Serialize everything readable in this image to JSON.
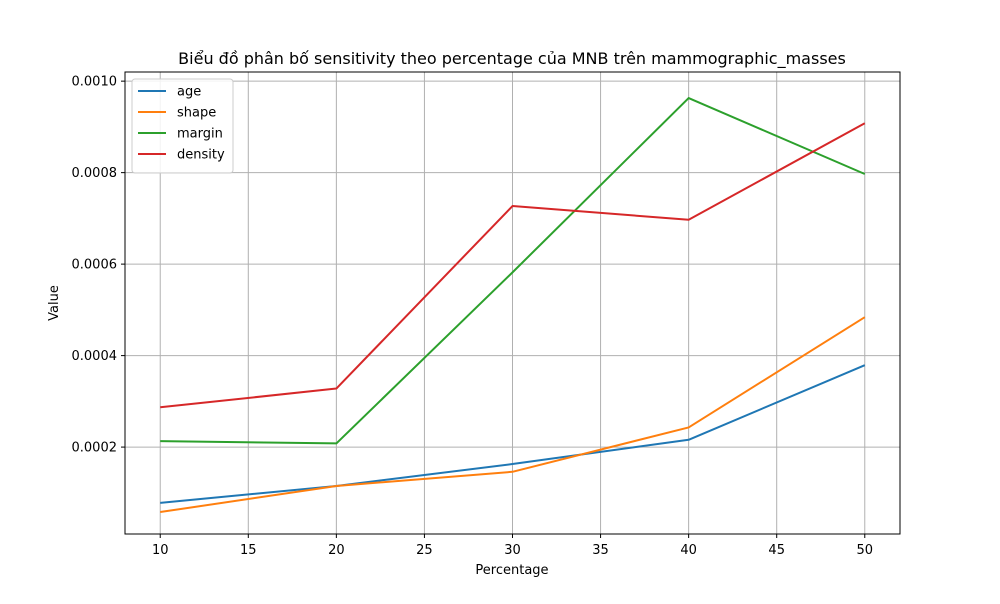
{
  "chart_data": {
    "type": "line",
    "title": "Biểu đồ phân bố sensitivity theo percentage của MNB trên mammographic_masses",
    "xlabel": "Percentage",
    "ylabel": "Value",
    "x": [
      10,
      20,
      30,
      40,
      50
    ],
    "xlim": [
      8,
      52
    ],
    "ylim": [
      1e-05,
      0.00102
    ],
    "xticks": [
      10,
      15,
      20,
      25,
      30,
      35,
      40,
      45,
      50
    ],
    "xtick_labels": [
      "10",
      "15",
      "20",
      "25",
      "30",
      "35",
      "40",
      "45",
      "50"
    ],
    "yticks": [
      0.0002,
      0.0004,
      0.0006,
      0.0008,
      0.001
    ],
    "ytick_labels": [
      "0.0002",
      "0.0004",
      "0.0006",
      "0.0008",
      "0.0010"
    ],
    "grid": true,
    "legend_position": "top-left",
    "series": [
      {
        "name": "age",
        "color": "#1f77b4",
        "values": [
          7.8e-05,
          0.000115,
          0.000163,
          0.000216,
          0.000379
        ]
      },
      {
        "name": "shape",
        "color": "#ff7f0e",
        "values": [
          5.8e-05,
          0.000115,
          0.000146,
          0.000243,
          0.000484
        ]
      },
      {
        "name": "margin",
        "color": "#2ca02c",
        "values": [
          0.000213,
          0.000208,
          0.000582,
          0.000963,
          0.000797
        ]
      },
      {
        "name": "density",
        "color": "#d62728",
        "values": [
          0.000287,
          0.000328,
          0.000727,
          0.000697,
          0.000908
        ]
      }
    ]
  }
}
